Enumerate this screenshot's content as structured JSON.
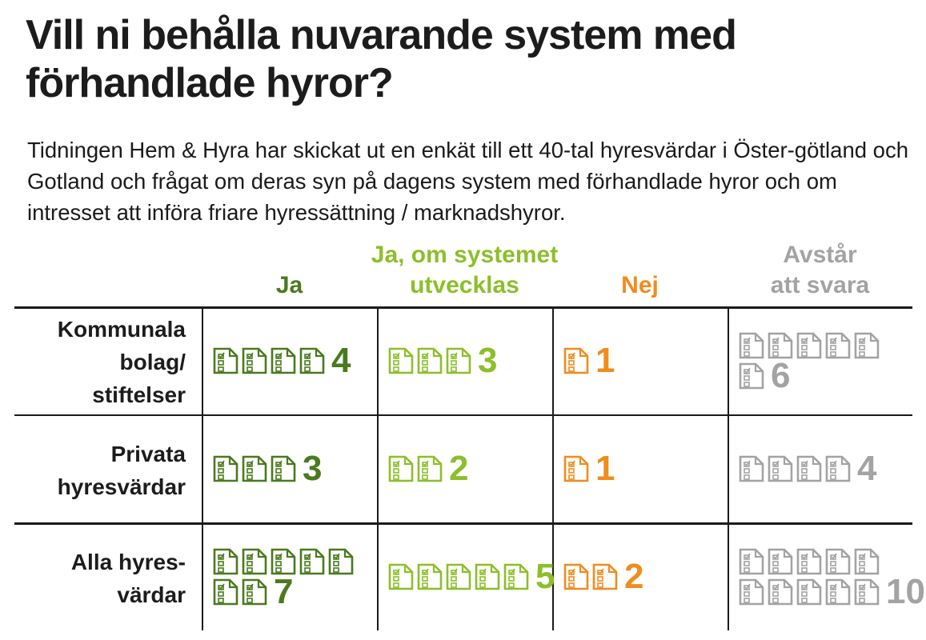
{
  "title": "Vill ni behålla nuvarande system med förhandlade hyror?",
  "intro": "Tidningen Hem & Hyra har skickat ut en enkät till ett 40-tal hyresvärdar i Öster-götland och Gotland och frågat om deras syn på dagens system med förhandlade hyror och om intresset att införa friare hyressättning / marknadshyror.",
  "colors": {
    "ja": "#4a7a1e",
    "ja_om": "#8cbf2a",
    "nej": "#f08c1e",
    "avstar": "#a3a3a3"
  },
  "icon": "ballot-document-icon",
  "chart_data": {
    "type": "table",
    "title": "Vill ni behålla nuvarande system med förhandlade hyror?",
    "columns": [
      {
        "key": "ja",
        "label_lines": [
          "Ja"
        ]
      },
      {
        "key": "ja_om",
        "label_lines": [
          "Ja, om systemet",
          "utvecklas"
        ]
      },
      {
        "key": "nej",
        "label_lines": [
          "Nej"
        ]
      },
      {
        "key": "avstar",
        "label_lines": [
          "Avstår",
          "att svara"
        ]
      }
    ],
    "rows": [
      {
        "label_lines": [
          "Kommunala",
          "bolag/",
          "stiftelser"
        ],
        "values": [
          4,
          3,
          1,
          6
        ]
      },
      {
        "label_lines": [
          "Privata",
          "hyresvärdar"
        ],
        "values": [
          3,
          2,
          1,
          4
        ]
      },
      {
        "label_lines": [
          "Alla hyres-",
          "värdar"
        ],
        "values": [
          7,
          5,
          2,
          10
        ]
      }
    ]
  }
}
